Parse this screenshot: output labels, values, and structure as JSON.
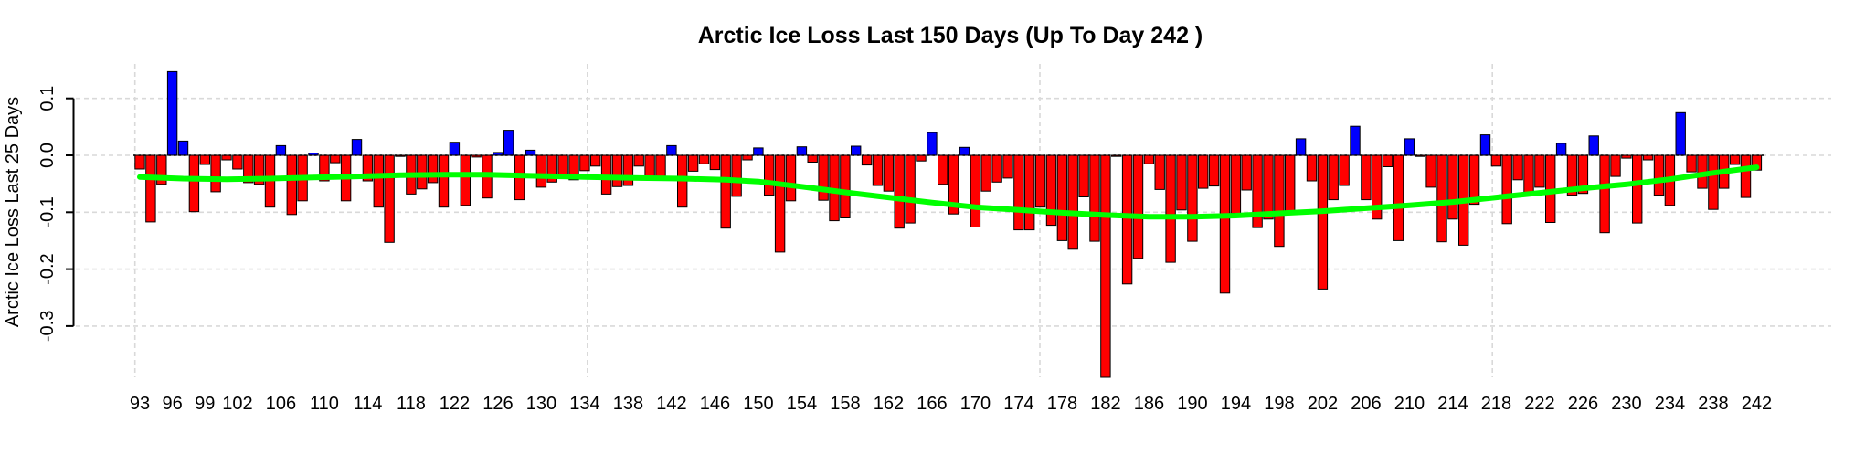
{
  "figure": {
    "background": "#FFFFFF"
  },
  "chart_data": {
    "type": "bar",
    "title": "Arctic Ice Loss Last 150 Days (Up To Day 242 )",
    "xlabel": "",
    "ylabel": "Arctic Ice Loss Last 25 Days",
    "x_start_day": 93,
    "x_end_day": 242,
    "x_tick_labels": [
      "93",
      "96",
      "99",
      "102",
      "106",
      "110",
      "114",
      "118",
      "122",
      "126",
      "130",
      "134",
      "138",
      "142",
      "146",
      "150",
      "154",
      "158",
      "162",
      "166",
      "170",
      "174",
      "178",
      "182",
      "186",
      "190",
      "194",
      "198",
      "202",
      "206",
      "210",
      "214",
      "218",
      "222",
      "226",
      "230",
      "234",
      "238",
      "242"
    ],
    "y_tick_labels": [
      "0.1",
      "0.0",
      "-0.1",
      "-0.2",
      "-0.3"
    ],
    "y_tick_values": [
      0.1,
      0.0,
      -0.1,
      -0.2,
      -0.3
    ],
    "ylim": [
      -0.39,
      0.155
    ],
    "grid": true,
    "legend": "none",
    "colors": {
      "positive_bar": "#0000FF",
      "negative_bar": "#FF0000",
      "bar_border": "#000000",
      "trend_line": "#00FF00",
      "gridline": "#D9D9D9",
      "zero_line": "#000000",
      "axis": "#000000"
    },
    "values": [
      -0.024,
      -0.117,
      -0.051,
      0.147,
      0.025,
      -0.099,
      -0.016,
      -0.064,
      -0.008,
      -0.024,
      -0.048,
      -0.051,
      -0.091,
      0.017,
      -0.104,
      -0.08,
      0.004,
      -0.045,
      -0.013,
      -0.08,
      0.028,
      -0.045,
      -0.091,
      -0.153,
      -0.002,
      -0.068,
      -0.059,
      -0.048,
      -0.091,
      0.023,
      -0.088,
      -0.003,
      -0.075,
      0.005,
      0.044,
      -0.078,
      0.009,
      -0.056,
      -0.047,
      -0.04,
      -0.043,
      -0.027,
      -0.019,
      -0.068,
      -0.055,
      -0.053,
      -0.019,
      -0.04,
      -0.044,
      0.017,
      -0.091,
      -0.028,
      -0.015,
      -0.025,
      -0.128,
      -0.072,
      -0.008,
      0.013,
      -0.07,
      -0.17,
      -0.08,
      0.015,
      -0.012,
      -0.079,
      -0.115,
      -0.11,
      0.016,
      -0.017,
      -0.053,
      -0.063,
      -0.128,
      -0.119,
      -0.01,
      0.04,
      -0.051,
      -0.103,
      0.014,
      -0.126,
      -0.063,
      -0.047,
      -0.04,
      -0.131,
      -0.131,
      -0.091,
      -0.123,
      -0.15,
      -0.165,
      -0.073,
      -0.151,
      -0.39,
      -0.002,
      -0.226,
      -0.181,
      -0.015,
      -0.06,
      -0.188,
      -0.096,
      -0.151,
      -0.058,
      -0.054,
      -0.242,
      -0.102,
      -0.061,
      -0.127,
      -0.112,
      -0.16,
      -0.102,
      0.029,
      -0.045,
      -0.235,
      -0.078,
      -0.053,
      0.051,
      -0.078,
      -0.112,
      -0.02,
      -0.15,
      0.029,
      -0.002,
      -0.056,
      -0.152,
      -0.112,
      -0.158,
      -0.086,
      0.036,
      -0.019,
      -0.12,
      -0.043,
      -0.07,
      -0.056,
      -0.118,
      0.021,
      -0.07,
      -0.067,
      0.034,
      -0.136,
      -0.037,
      -0.005,
      -0.119,
      -0.008,
      -0.07,
      -0.088,
      0.075,
      -0.029,
      -0.058,
      -0.095,
      -0.058,
      -0.016,
      -0.074,
      -0.026
    ],
    "trend": [
      [
        93,
        -0.038
      ],
      [
        97,
        -0.041
      ],
      [
        101,
        -0.042
      ],
      [
        105,
        -0.041
      ],
      [
        109,
        -0.039
      ],
      [
        113,
        -0.037
      ],
      [
        117,
        -0.035
      ],
      [
        121,
        -0.034
      ],
      [
        125,
        -0.034
      ],
      [
        129,
        -0.036
      ],
      [
        134,
        -0.038
      ],
      [
        139,
        -0.04
      ],
      [
        143,
        -0.041
      ],
      [
        147,
        -0.043
      ],
      [
        150,
        -0.046
      ],
      [
        154,
        -0.055
      ],
      [
        158,
        -0.065
      ],
      [
        162,
        -0.074
      ],
      [
        166,
        -0.083
      ],
      [
        170,
        -0.091
      ],
      [
        174,
        -0.096
      ],
      [
        178,
        -0.101
      ],
      [
        182,
        -0.105
      ],
      [
        186,
        -0.108
      ],
      [
        190,
        -0.108
      ],
      [
        194,
        -0.106
      ],
      [
        198,
        -0.102
      ],
      [
        202,
        -0.098
      ],
      [
        206,
        -0.093
      ],
      [
        210,
        -0.088
      ],
      [
        214,
        -0.082
      ],
      [
        218,
        -0.074
      ],
      [
        222,
        -0.066
      ],
      [
        226,
        -0.058
      ],
      [
        230,
        -0.051
      ],
      [
        234,
        -0.042
      ],
      [
        238,
        -0.031
      ],
      [
        242,
        -0.021
      ]
    ]
  }
}
